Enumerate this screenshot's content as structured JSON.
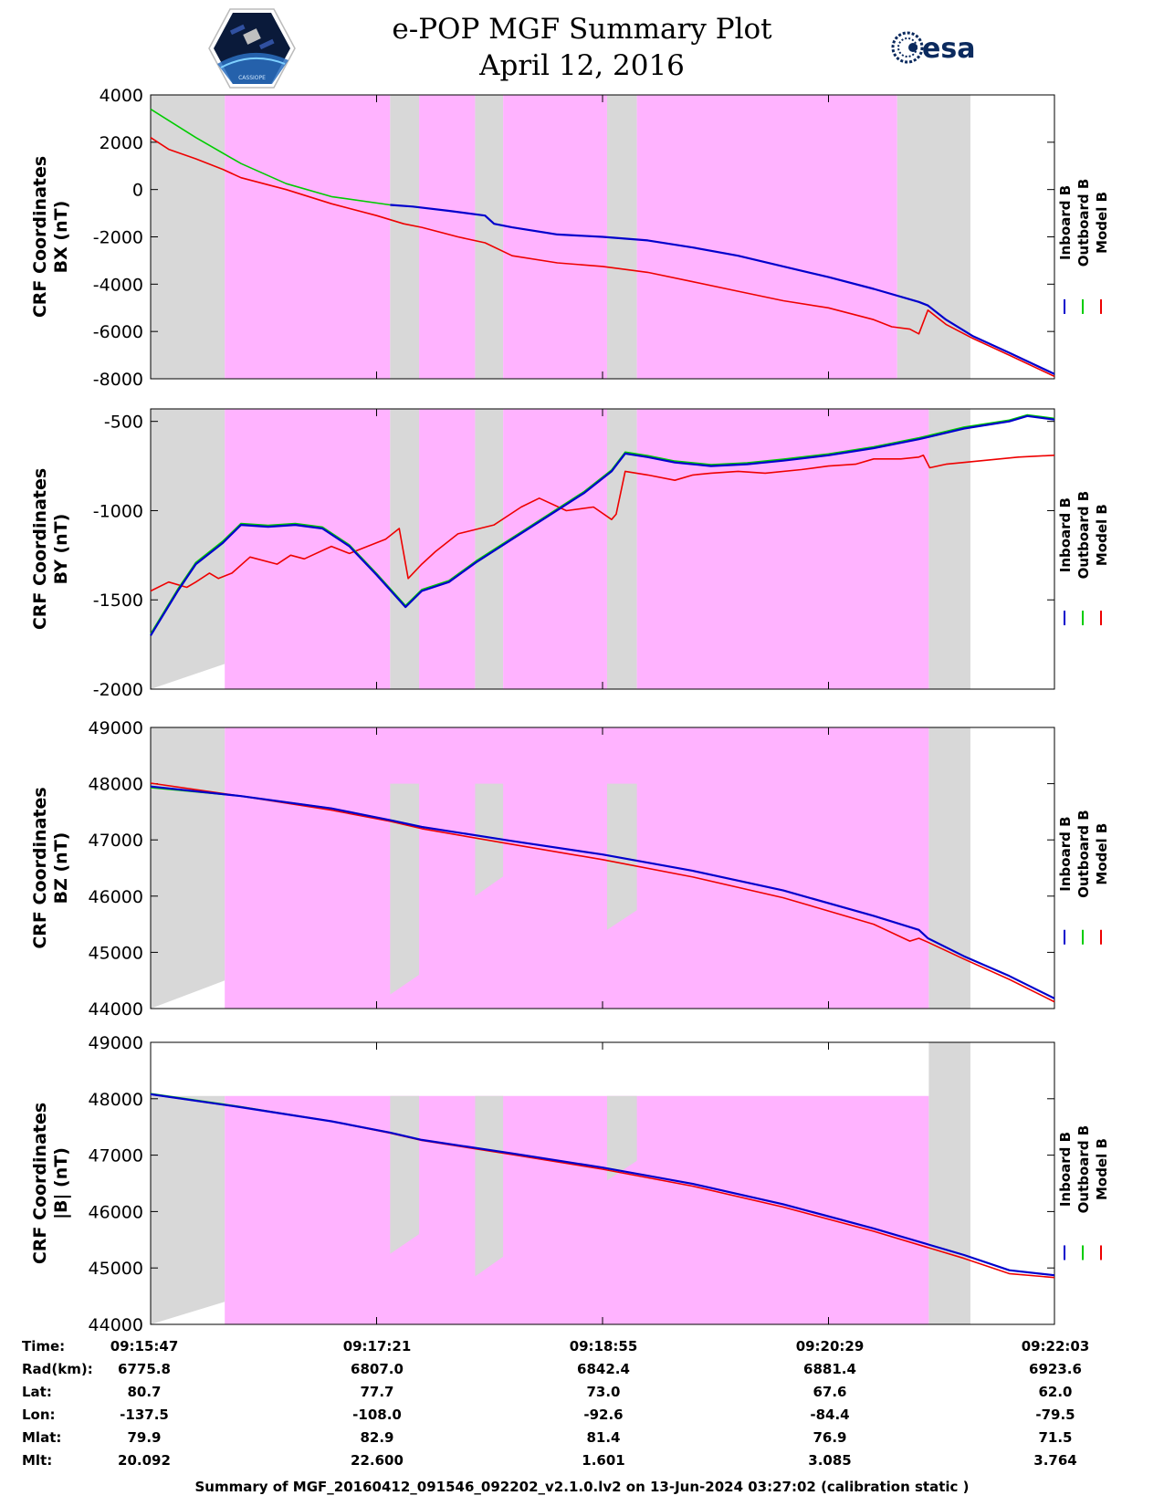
{
  "header": {
    "title": "e-POP MGF Summary Plot",
    "date": "April 12, 2016",
    "esa_logo_text": "esa",
    "cassiope_logo_text": "CASSIOPE"
  },
  "colors": {
    "inboard": "#0000cc",
    "outboard": "#00cc00",
    "model": "#ee0000",
    "pink_region": "#ffb3ff",
    "gray_region": "#d8d8d8"
  },
  "legend": [
    "Inboard B",
    "Outboard B",
    "Model B"
  ],
  "chart_data": [
    {
      "type": "line",
      "ylabel_line1": "CRF Coordinates",
      "ylabel_line2": "BX (nT)",
      "ylim": [
        -8000,
        4000
      ],
      "yticks": [
        4000,
        2000,
        0,
        -2000,
        -4000,
        -6000,
        -8000
      ],
      "ytick_labels": [
        "4000",
        "2000",
        "0",
        "-2000",
        "-4000",
        "-6000",
        "-8000"
      ],
      "xlim": [
        0,
        1
      ],
      "shading": [
        {
          "x0": 0.0,
          "x1": 0.082,
          "color": "gray"
        },
        {
          "x0": 0.082,
          "x1": 0.265,
          "color": "pink"
        },
        {
          "x0": 0.265,
          "x1": 0.297,
          "color": "gray"
        },
        {
          "x0": 0.297,
          "x1": 0.359,
          "color": "pink"
        },
        {
          "x0": 0.359,
          "x1": 0.39,
          "color": "gray"
        },
        {
          "x0": 0.39,
          "x1": 0.505,
          "color": "pink"
        },
        {
          "x0": 0.505,
          "x1": 0.538,
          "color": "gray"
        },
        {
          "x0": 0.538,
          "x1": 0.826,
          "color": "pink"
        },
        {
          "x0": 0.826,
          "x1": 0.907,
          "color": "gray"
        }
      ],
      "series": [
        {
          "name": "Inboard B",
          "color_key": "inboard",
          "x": [
            0.265,
            0.29,
            0.33,
            0.37,
            0.38,
            0.4,
            0.45,
            0.5,
            0.55,
            0.6,
            0.65,
            0.7,
            0.75,
            0.8,
            0.85,
            0.86,
            0.88,
            0.91,
            0.95,
            1.0
          ],
          "y": [
            -650,
            -720,
            -900,
            -1100,
            -1450,
            -1600,
            -1900,
            -2000,
            -2150,
            -2450,
            -2800,
            -3250,
            -3700,
            -4200,
            -4750,
            -4900,
            -5500,
            -6200,
            -6900,
            -7800
          ]
        },
        {
          "name": "Outboard B",
          "color_key": "outboard",
          "x": [
            0.0,
            0.05,
            0.1,
            0.15,
            0.2,
            0.265
          ],
          "y": [
            3400,
            2200,
            1100,
            250,
            -300,
            -650
          ]
        },
        {
          "name": "Model B",
          "color_key": "model",
          "x": [
            0.0,
            0.02,
            0.05,
            0.08,
            0.1,
            0.15,
            0.2,
            0.25,
            0.28,
            0.3,
            0.34,
            0.37,
            0.4,
            0.45,
            0.5,
            0.53,
            0.55,
            0.6,
            0.65,
            0.7,
            0.75,
            0.8,
            0.82,
            0.84,
            0.85,
            0.86,
            0.88,
            0.91,
            0.95,
            1.0
          ],
          "y": [
            2200,
            1700,
            1300,
            850,
            500,
            0,
            -600,
            -1100,
            -1450,
            -1600,
            -2000,
            -2250,
            -2800,
            -3100,
            -3250,
            -3400,
            -3500,
            -3900,
            -4300,
            -4700,
            -5000,
            -5500,
            -5800,
            -5900,
            -6100,
            -5100,
            -5700,
            -6300,
            -7000,
            -7900
          ]
        }
      ]
    },
    {
      "type": "line",
      "ylabel_line1": "CRF Coordinates",
      "ylabel_line2": "BY (nT)",
      "ylim": [
        -2000,
        -430
      ],
      "yticks": [
        -500,
        -1000,
        -1500,
        -2000
      ],
      "ytick_labels": [
        "-500",
        "-1000",
        "-1500",
        "-2000"
      ],
      "xlim": [
        0,
        1
      ],
      "shading": [
        {
          "x0": 0.0,
          "x1": 0.082,
          "color": "gray"
        },
        {
          "x0": 0.082,
          "x1": 0.265,
          "color": "pink"
        },
        {
          "x0": 0.265,
          "x1": 0.297,
          "color": "gray"
        },
        {
          "x0": 0.297,
          "x1": 0.359,
          "color": "pink"
        },
        {
          "x0": 0.359,
          "x1": 0.39,
          "color": "gray"
        },
        {
          "x0": 0.39,
          "x1": 0.505,
          "color": "pink"
        },
        {
          "x0": 0.505,
          "x1": 0.538,
          "color": "gray"
        },
        {
          "x0": 0.538,
          "x1": 0.861,
          "color": "pink"
        },
        {
          "x0": 0.861,
          "x1": 0.907,
          "color": "gray"
        }
      ],
      "series": [
        {
          "name": "Inboard B",
          "color_key": "inboard",
          "x": [
            0.0,
            0.03,
            0.05,
            0.08,
            0.1,
            0.13,
            0.16,
            0.19,
            0.22,
            0.25,
            0.282,
            0.3,
            0.33,
            0.36,
            0.4,
            0.44,
            0.48,
            0.51,
            0.525,
            0.55,
            0.58,
            0.62,
            0.66,
            0.7,
            0.75,
            0.8,
            0.85,
            0.9,
            0.95,
            0.97,
            1.0
          ],
          "y": [
            -1700,
            -1450,
            -1300,
            -1180,
            -1080,
            -1090,
            -1080,
            -1100,
            -1200,
            -1360,
            -1540,
            -1450,
            -1400,
            -1290,
            -1160,
            -1030,
            -900,
            -780,
            -680,
            -700,
            -730,
            -750,
            -740,
            -720,
            -690,
            -650,
            -600,
            -540,
            -500,
            -470,
            -490
          ]
        },
        {
          "name": "Outboard B",
          "color_key": "outboard",
          "x": [
            0.0,
            0.03,
            0.05,
            0.08,
            0.1,
            0.13,
            0.16,
            0.19,
            0.22,
            0.25,
            0.282,
            0.3,
            0.33,
            0.36,
            0.4,
            0.44,
            0.48,
            0.51,
            0.525,
            0.55,
            0.58,
            0.62,
            0.66,
            0.7,
            0.75,
            0.8,
            0.85,
            0.9,
            0.95,
            0.97,
            1.0
          ],
          "y": [
            -1690,
            -1440,
            -1290,
            -1170,
            -1072,
            -1082,
            -1072,
            -1092,
            -1192,
            -1352,
            -1532,
            -1442,
            -1392,
            -1282,
            -1152,
            -1022,
            -892,
            -772,
            -672,
            -692,
            -722,
            -742,
            -732,
            -712,
            -682,
            -642,
            -592,
            -532,
            -493,
            -463,
            -483
          ]
        },
        {
          "name": "Model B",
          "color_key": "model",
          "x": [
            0.0,
            0.02,
            0.04,
            0.05,
            0.065,
            0.075,
            0.09,
            0.11,
            0.14,
            0.155,
            0.17,
            0.2,
            0.22,
            0.26,
            0.275,
            0.285,
            0.3,
            0.315,
            0.34,
            0.38,
            0.41,
            0.43,
            0.46,
            0.49,
            0.51,
            0.515,
            0.525,
            0.55,
            0.58,
            0.6,
            0.62,
            0.65,
            0.68,
            0.72,
            0.75,
            0.78,
            0.8,
            0.83,
            0.85,
            0.855,
            0.862,
            0.88,
            0.92,
            0.96,
            1.0
          ],
          "y": [
            -1450,
            -1400,
            -1430,
            -1400,
            -1350,
            -1380,
            -1350,
            -1260,
            -1300,
            -1250,
            -1270,
            -1200,
            -1240,
            -1160,
            -1100,
            -1380,
            -1300,
            -1230,
            -1130,
            -1080,
            -980,
            -930,
            -1000,
            -980,
            -1050,
            -1020,
            -780,
            -800,
            -830,
            -800,
            -790,
            -780,
            -790,
            -770,
            -750,
            -740,
            -710,
            -710,
            -700,
            -690,
            -760,
            -740,
            -720,
            -700,
            -690
          ]
        }
      ]
    },
    {
      "type": "line",
      "ylabel_line1": "CRF Coordinates",
      "ylabel_line2": "BZ (nT)",
      "ylim": [
        44000,
        49000
      ],
      "yticks": [
        49000,
        48000,
        47000,
        46000,
        45000,
        44000
      ],
      "ytick_labels": [
        "49000",
        "48000",
        "47000",
        "46000",
        "45000",
        "44000"
      ],
      "xlim": [
        0,
        1
      ],
      "shading": [
        {
          "x0": 0.0,
          "x1": 0.082,
          "color": "gray_lower"
        },
        {
          "x0": 0.082,
          "x1": 0.861,
          "color": "pink"
        },
        {
          "x0": 0.265,
          "x1": 0.297,
          "color": "gray_box"
        },
        {
          "x0": 0.359,
          "x1": 0.39,
          "color": "gray_box"
        },
        {
          "x0": 0.505,
          "x1": 0.538,
          "color": "gray_box"
        },
        {
          "x0": 0.861,
          "x1": 0.907,
          "color": "gray"
        }
      ],
      "series": [
        {
          "name": "Inboard B",
          "color_key": "inboard",
          "x": [
            0.0,
            0.1,
            0.2,
            0.265,
            0.3,
            0.4,
            0.5,
            0.6,
            0.7,
            0.8,
            0.85,
            0.86,
            0.9,
            0.95,
            1.0
          ],
          "y": [
            47950,
            47780,
            47560,
            47350,
            47230,
            46980,
            46740,
            46450,
            46100,
            45650,
            45400,
            45250,
            44930,
            44580,
            44180
          ]
        },
        {
          "name": "Outboard B",
          "color_key": "outboard",
          "x": [
            0.0,
            0.1,
            0.2,
            0.265
          ],
          "y": [
            47930,
            47780,
            47560,
            47350
          ]
        },
        {
          "name": "Model B",
          "color_key": "model",
          "x": [
            0.0,
            0.1,
            0.2,
            0.265,
            0.3,
            0.4,
            0.5,
            0.6,
            0.7,
            0.8,
            0.84,
            0.85,
            0.86,
            0.9,
            0.95,
            1.0
          ],
          "y": [
            48010,
            47780,
            47530,
            47330,
            47200,
            46920,
            46650,
            46340,
            45970,
            45500,
            45200,
            45250,
            45180,
            44880,
            44520,
            44120
          ]
        }
      ]
    },
    {
      "type": "line",
      "ylabel_line1": "CRF Coordinates",
      "ylabel_line2": "|B| (nT)",
      "ylim": [
        44000,
        49000
      ],
      "yticks": [
        49000,
        48000,
        47000,
        46000,
        45000,
        44000
      ],
      "ytick_labels": [
        "49000",
        "48000",
        "47000",
        "46000",
        "45000",
        "44000"
      ],
      "xlim": [
        0,
        1
      ],
      "shading": [
        {
          "x0": 0.0,
          "x1": 0.082,
          "color": "gray_lower"
        },
        {
          "x0": 0.082,
          "x1": 0.861,
          "color": "pink_lower"
        },
        {
          "x0": 0.265,
          "x1": 0.297,
          "color": "gray_box"
        },
        {
          "x0": 0.359,
          "x1": 0.39,
          "color": "gray_box"
        },
        {
          "x0": 0.505,
          "x1": 0.538,
          "color": "gray_box"
        },
        {
          "x0": 0.861,
          "x1": 0.907,
          "color": "gray"
        }
      ],
      "series": [
        {
          "name": "Inboard B",
          "color_key": "inboard",
          "x": [
            0.0,
            0.1,
            0.2,
            0.265,
            0.3,
            0.4,
            0.5,
            0.6,
            0.7,
            0.8,
            0.9,
            0.95,
            1.0
          ],
          "y": [
            48080,
            47850,
            47600,
            47400,
            47270,
            47030,
            46780,
            46490,
            46130,
            45700,
            45230,
            44960,
            44870
          ]
        },
        {
          "name": "Outboard B",
          "color_key": "outboard",
          "x": [
            0.0,
            0.1,
            0.2,
            0.265
          ],
          "y": [
            48090,
            47860,
            47600,
            47400
          ]
        },
        {
          "name": "Model B",
          "color_key": "model",
          "x": [
            0.0,
            0.1,
            0.2,
            0.265,
            0.3,
            0.4,
            0.5,
            0.6,
            0.7,
            0.8,
            0.9,
            0.95,
            1.0
          ],
          "y": [
            48080,
            47850,
            47600,
            47390,
            47260,
            47010,
            46750,
            46450,
            46080,
            45650,
            45170,
            44900,
            44830
          ]
        }
      ]
    }
  ],
  "ephemeris": {
    "labels": [
      "Time:",
      "Rad(km):",
      "Lat:",
      "Lon:",
      "Mlat:",
      "Mlt:"
    ],
    "columns": [
      [
        "09:15:47",
        "6775.8",
        "80.7",
        "-137.5",
        "79.9",
        "20.092"
      ],
      [
        "09:17:21",
        "6807.0",
        "77.7",
        "-108.0",
        "82.9",
        "22.600"
      ],
      [
        "09:18:55",
        "6842.4",
        "73.0",
        "-92.6",
        "81.4",
        "1.601"
      ],
      [
        "09:20:29",
        "6881.4",
        "67.6",
        "-84.4",
        "76.9",
        "3.085"
      ],
      [
        "09:22:03",
        "6923.6",
        "62.0",
        "-79.5",
        "71.5",
        "3.764"
      ]
    ]
  },
  "footer": "Summary of MGF_20160412_091546_092202_v2.1.0.lv2 on 13-Jun-2024 03:27:02 (calibration static )"
}
